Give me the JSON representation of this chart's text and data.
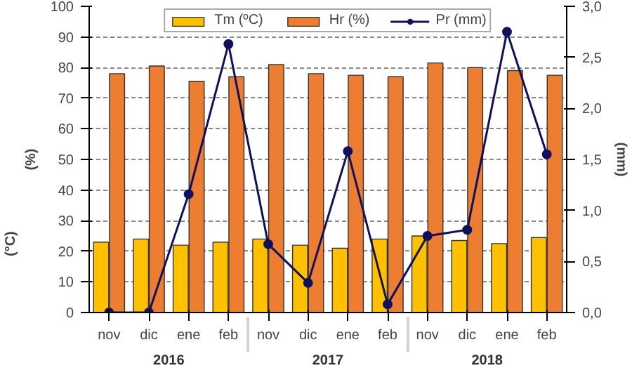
{
  "chart_data": {
    "type": "bar",
    "categories": [
      "nov",
      "dic",
      "ene",
      "feb",
      "nov",
      "dic",
      "ene",
      "feb",
      "nov",
      "dic",
      "ene",
      "feb"
    ],
    "series": [
      {
        "name": "Tm (ºC)",
        "color": "#ffc000",
        "values": [
          23,
          24,
          22,
          23,
          24,
          22,
          21,
          24,
          25,
          23.5,
          22.5,
          24.5
        ]
      },
      {
        "name": "Hr (%)",
        "color": "#ed7d31",
        "values": [
          78,
          80.5,
          75.5,
          77,
          81,
          78,
          77.5,
          77,
          81.5,
          80,
          79,
          77.5
        ]
      },
      {
        "name": "Pr (mm)",
        "type": "line",
        "axis": "y2",
        "color": "#10105e",
        "marker": "circle",
        "values": [
          0,
          0,
          1.16,
          2.63,
          0.67,
          0.29,
          1.58,
          0.08,
          0.75,
          0.81,
          2.75,
          1.55
        ]
      }
    ],
    "ylabel": "(%)",
    "y2label": "(mm)",
    "annotations": [
      "(°C)",
      "2016",
      "2017",
      "2018"
    ],
    "ylim": [
      0,
      100
    ],
    "yticks": [
      0,
      10,
      20,
      30,
      40,
      50,
      60,
      70,
      80,
      90,
      100
    ],
    "y2lim": [
      0,
      3
    ],
    "y2ticks": [
      {
        "value": 0,
        "label": "0,0"
      },
      {
        "value": 0.5,
        "label": "0,5"
      },
      {
        "value": 1,
        "label": "1,0"
      },
      {
        "value": 1.5,
        "label": "1,5"
      },
      {
        "value": 2,
        "label": "2,0"
      },
      {
        "value": 2.5,
        "label": "2,5"
      },
      {
        "value": 3,
        "label": "3,0"
      }
    ],
    "grid": "y",
    "legend": "top"
  }
}
